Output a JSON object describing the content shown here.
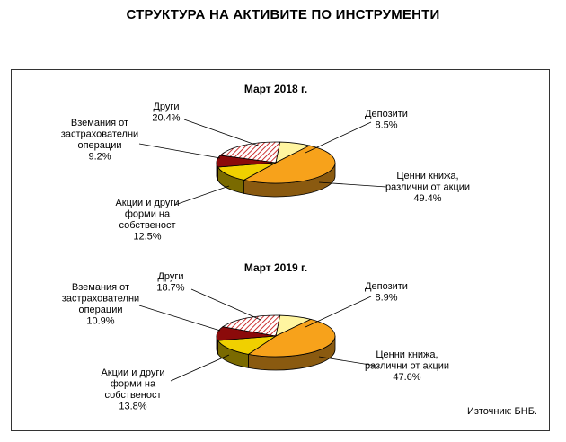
{
  "page_title": "СТРУКТУРА НА АКТИВИТЕ ПО ИНСТРУМЕНТИ",
  "source": "Източник: БНБ.",
  "colors": {
    "deposits": "#fff5a0",
    "securities": "#f7a21b",
    "equity": "#f0d000",
    "receivables": "#8b0a0a",
    "other_stripe": "#c00000"
  },
  "chart_data": [
    {
      "type": "pie",
      "title": "Март 2018 г.",
      "categories": [
        "Депозити",
        "Ценни книжа, различни от акции",
        "Акции и други форми на собственост",
        "Вземания от застрахователни операции",
        "Други"
      ],
      "values": [
        8.5,
        49.4,
        12.5,
        9.2,
        20.4
      ],
      "labels": [
        {
          "lines": [
            "Депозити",
            "8.5%"
          ]
        },
        {
          "lines": [
            "Ценни книжа,",
            "различни от акции",
            "49.4%"
          ]
        },
        {
          "lines": [
            "Акции и други",
            "форми на",
            "собственост",
            "12.5%"
          ]
        },
        {
          "lines": [
            "Вземания от",
            "застрахователни",
            "операции",
            "9.2%"
          ]
        },
        {
          "lines": [
            "Други",
            "20.4%"
          ]
        }
      ]
    },
    {
      "type": "pie",
      "title": "Март 2019 г.",
      "categories": [
        "Депозити",
        "Ценни книжа, различни от акции",
        "Акции и други форми на собственост",
        "Вземания от застрахователни операции",
        "Други"
      ],
      "values": [
        8.9,
        47.6,
        13.8,
        10.9,
        18.7
      ],
      "labels": [
        {
          "lines": [
            "Депозити",
            "8.9%"
          ]
        },
        {
          "lines": [
            "Ценни книжа,",
            "различни от акции",
            "47.6%"
          ]
        },
        {
          "lines": [
            "Акции и други",
            "форми на",
            "собственост",
            "13.8%"
          ]
        },
        {
          "lines": [
            "Вземания от",
            "застрахователни",
            "операции",
            "10.9%"
          ]
        },
        {
          "lines": [
            "Други",
            "18.7%"
          ]
        }
      ]
    }
  ]
}
